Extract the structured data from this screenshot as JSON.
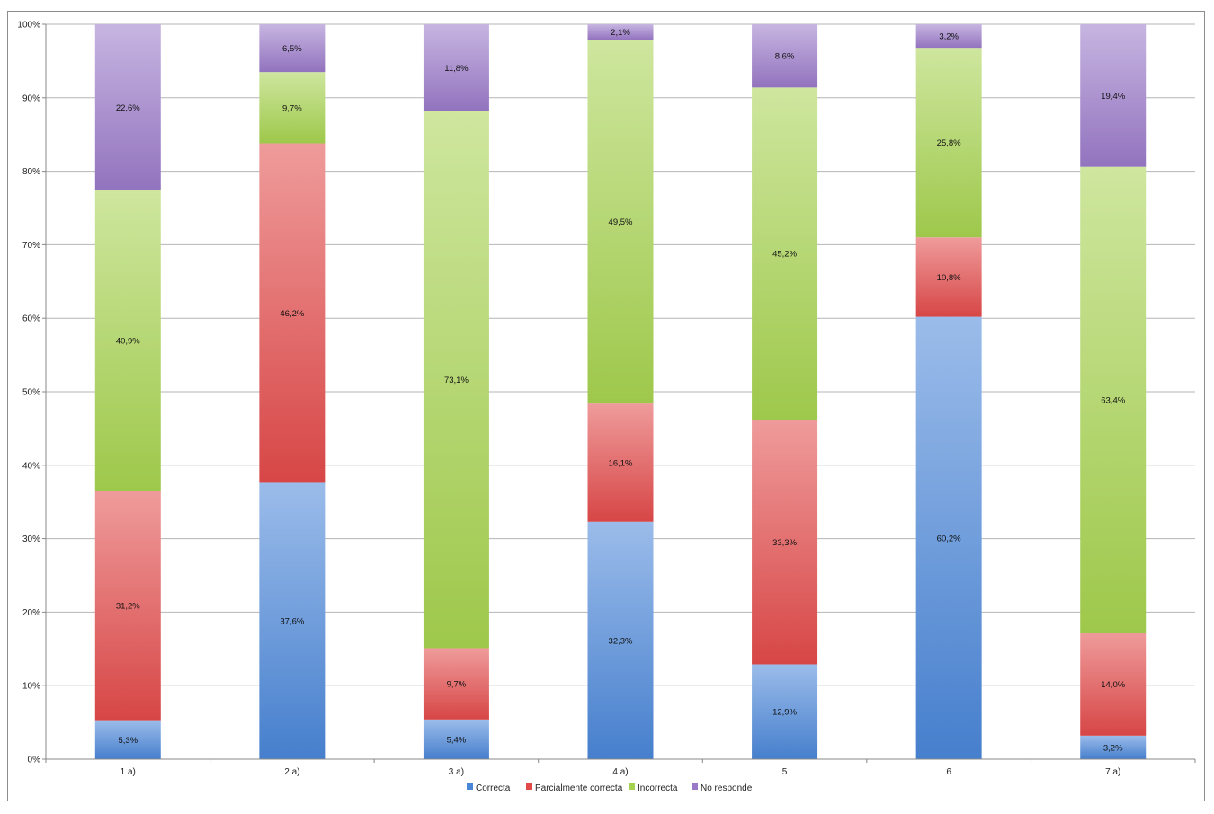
{
  "chart_data": {
    "type": "bar",
    "stacked": true,
    "categories": [
      "1 a)",
      "2 a)",
      "3 a)",
      "4 a)",
      "5",
      "6",
      "7 a)"
    ],
    "series": [
      {
        "name": "Correcta",
        "color": "#4a86d8",
        "values": [
          5.3,
          37.6,
          5.4,
          32.3,
          12.9,
          60.2,
          3.2
        ],
        "labels": [
          "5,3%",
          "37,6%",
          "5,4%",
          "32,3%",
          "12,9%",
          "60,2%",
          "3,2%"
        ]
      },
      {
        "name": "Parcialmente correcta",
        "color": "#e24a4a",
        "values": [
          31.2,
          46.2,
          9.7,
          16.1,
          33.3,
          10.8,
          14.0
        ],
        "labels": [
          "31,2%",
          "46,2%",
          "9,7%",
          "16,1%",
          "33,3%",
          "10,8%",
          "14,0%"
        ]
      },
      {
        "name": "Incorrecta",
        "color": "#a6d24f",
        "values": [
          40.9,
          9.7,
          73.1,
          49.5,
          45.2,
          25.8,
          63.4
        ],
        "labels": [
          "40,9%",
          "9,7%",
          "73,1%",
          "49,5%",
          "45,2%",
          "25,8%",
          "63,4%"
        ]
      },
      {
        "name": "No responde",
        "color": "#9a79c8",
        "values": [
          22.6,
          6.5,
          11.8,
          2.1,
          8.6,
          3.2,
          19.4
        ],
        "labels": [
          "22,6%",
          "6,5%",
          "11,8%",
          "2,1%",
          "8,6%",
          "3,2%",
          "19,4%"
        ]
      }
    ],
    "yticks": [
      "0%",
      "10%",
      "20%",
      "30%",
      "40%",
      "50%",
      "60%",
      "70%",
      "80%",
      "90%",
      "100%"
    ],
    "ylim": [
      0,
      100
    ],
    "legend_position": "bottom",
    "grid": true
  }
}
